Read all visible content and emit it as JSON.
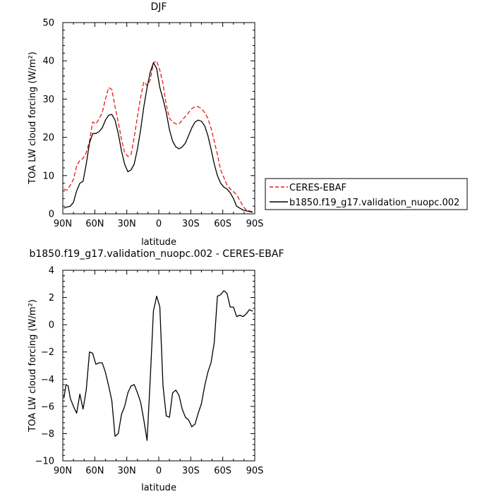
{
  "chart_data": [
    {
      "type": "line",
      "title": "DJF",
      "xlabel": "latitude",
      "ylabel": "TOA LW cloud forcing (W/m²)",
      "xlim": [
        90,
        -90
      ],
      "ylim": [
        0,
        50
      ],
      "xticks": [
        90,
        60,
        30,
        0,
        -30,
        -60,
        -90
      ],
      "xtick_labels": [
        "90N",
        "60N",
        "30N",
        "0",
        "30S",
        "60S",
        "90S"
      ],
      "yticks": [
        0,
        10,
        20,
        30,
        40,
        50
      ],
      "ytick_labels": [
        "0",
        "10",
        "20",
        "30",
        "40",
        "50"
      ],
      "legend_position": "right",
      "series": [
        {
          "name": "CERES-EBAF",
          "color": "#e8191c",
          "style": "dashed",
          "x": [
            89,
            86,
            83,
            80,
            77,
            74,
            71,
            68,
            65,
            62,
            59,
            56,
            53,
            50,
            47,
            44,
            41,
            38,
            35,
            32,
            29,
            26,
            23,
            20,
            17,
            14,
            11,
            8,
            5,
            2,
            -1,
            -4,
            -7,
            -10,
            -13,
            -16,
            -19,
            -22,
            -25,
            -28,
            -31,
            -34,
            -37,
            -40,
            -43,
            -46,
            -49,
            -52,
            -55,
            -58,
            -61,
            -64,
            -67,
            -70,
            -73,
            -76,
            -79,
            -82,
            -85,
            -88
          ],
          "y": [
            6.5,
            6.2,
            7.5,
            9.0,
            12.5,
            14.0,
            14.5,
            16.0,
            19.0,
            24.0,
            23.5,
            24.8,
            26.5,
            30.0,
            33.0,
            32.5,
            28.0,
            24.0,
            19.5,
            16.0,
            15.0,
            15.5,
            20.0,
            25.5,
            30.5,
            34.5,
            33.5,
            35.0,
            39.5,
            40.0,
            37.5,
            34.0,
            28.5,
            25.0,
            24.0,
            23.5,
            23.5,
            24.5,
            25.5,
            26.5,
            27.5,
            28.0,
            28.0,
            27.5,
            26.5,
            25.0,
            22.5,
            19.0,
            15.5,
            11.5,
            9.5,
            7.5,
            6.5,
            5.8,
            5.0,
            3.5,
            2.0,
            1.0,
            0.8,
            0.5
          ]
        },
        {
          "name": "b1850.f19_g17.validation_nuopc.002",
          "color": "#000000",
          "style": "solid",
          "x": [
            89,
            86,
            83,
            80,
            77,
            74,
            71,
            68,
            65,
            62,
            59,
            56,
            53,
            50,
            47,
            44,
            41,
            38,
            35,
            32,
            29,
            26,
            23,
            20,
            17,
            14,
            11,
            8,
            5,
            2,
            -1,
            -4,
            -7,
            -10,
            -13,
            -16,
            -19,
            -22,
            -25,
            -28,
            -31,
            -34,
            -37,
            -40,
            -43,
            -46,
            -49,
            -52,
            -55,
            -58,
            -61,
            -64,
            -67,
            -70,
            -73,
            -76,
            -79,
            -82,
            -85,
            -88
          ],
          "y": [
            1.5,
            1.8,
            2.0,
            3.0,
            6.0,
            8.0,
            8.5,
            13.0,
            18.5,
            21.0,
            21.0,
            21.5,
            22.5,
            24.5,
            25.8,
            26.0,
            24.5,
            21.0,
            16.5,
            13.0,
            11.0,
            11.5,
            13.0,
            17.0,
            22.0,
            28.0,
            33.0,
            37.0,
            39.5,
            38.0,
            33.0,
            30.0,
            26.5,
            22.0,
            19.0,
            17.5,
            17.0,
            17.5,
            18.5,
            20.5,
            22.5,
            24.0,
            24.5,
            24.2,
            23.0,
            20.5,
            17.0,
            13.0,
            10.0,
            8.0,
            7.0,
            6.5,
            5.5,
            4.0,
            2.0,
            1.5,
            1.0,
            0.8,
            0.6,
            0.4
          ]
        }
      ]
    },
    {
      "type": "line",
      "title": "b1850.f19_g17.validation_nuopc.002 - CERES-EBAF",
      "xlabel": "latitude",
      "ylabel": "TOA LW cloud forcing (W/m²)",
      "xlim": [
        90,
        -90
      ],
      "ylim": [
        -10,
        4
      ],
      "xticks": [
        90,
        60,
        30,
        0,
        -30,
        -60,
        -90
      ],
      "xtick_labels": [
        "90N",
        "60N",
        "30N",
        "0",
        "30S",
        "60S",
        "90S"
      ],
      "yticks": [
        -10,
        -8,
        -6,
        -4,
        -2,
        0,
        2,
        4
      ],
      "ytick_labels": [
        "−10",
        "−8",
        "−6",
        "−4",
        "−2",
        "0",
        "2",
        "4"
      ],
      "series": [
        {
          "color": "#000000",
          "style": "solid",
          "x": [
            89,
            87,
            85,
            83,
            80,
            77,
            74,
            71,
            68,
            65,
            62,
            59,
            56,
            53,
            50,
            47,
            44,
            41,
            38,
            35,
            32,
            29,
            26,
            23,
            20,
            17,
            14,
            11,
            8,
            5,
            2,
            -1,
            -4,
            -7,
            -10,
            -13,
            -16,
            -19,
            -22,
            -25,
            -28,
            -31,
            -34,
            -37,
            -40,
            -43,
            -46,
            -49,
            -52,
            -55,
            -58,
            -61,
            -64,
            -67,
            -70,
            -73,
            -76,
            -79,
            -82,
            -85,
            -88
          ],
          "y": [
            -5.4,
            -4.4,
            -4.5,
            -5.4,
            -6.0,
            -6.5,
            -5.1,
            -6.2,
            -4.8,
            -2.0,
            -2.1,
            -2.9,
            -2.8,
            -2.8,
            -3.5,
            -4.5,
            -5.6,
            -8.2,
            -8.0,
            -6.6,
            -6.0,
            -5.0,
            -4.5,
            -4.4,
            -5.0,
            -5.7,
            -7.0,
            -8.5,
            -4.0,
            1.0,
            2.1,
            1.3,
            -4.5,
            -6.7,
            -6.8,
            -5.0,
            -4.8,
            -5.2,
            -6.2,
            -6.8,
            -7.0,
            -7.5,
            -7.3,
            -6.5,
            -5.8,
            -4.5,
            -3.5,
            -2.8,
            -1.3,
            2.1,
            2.2,
            2.5,
            2.3,
            1.3,
            1.3,
            0.6,
            0.7,
            0.6,
            0.8,
            1.1,
            1.0
          ]
        }
      ]
    }
  ]
}
